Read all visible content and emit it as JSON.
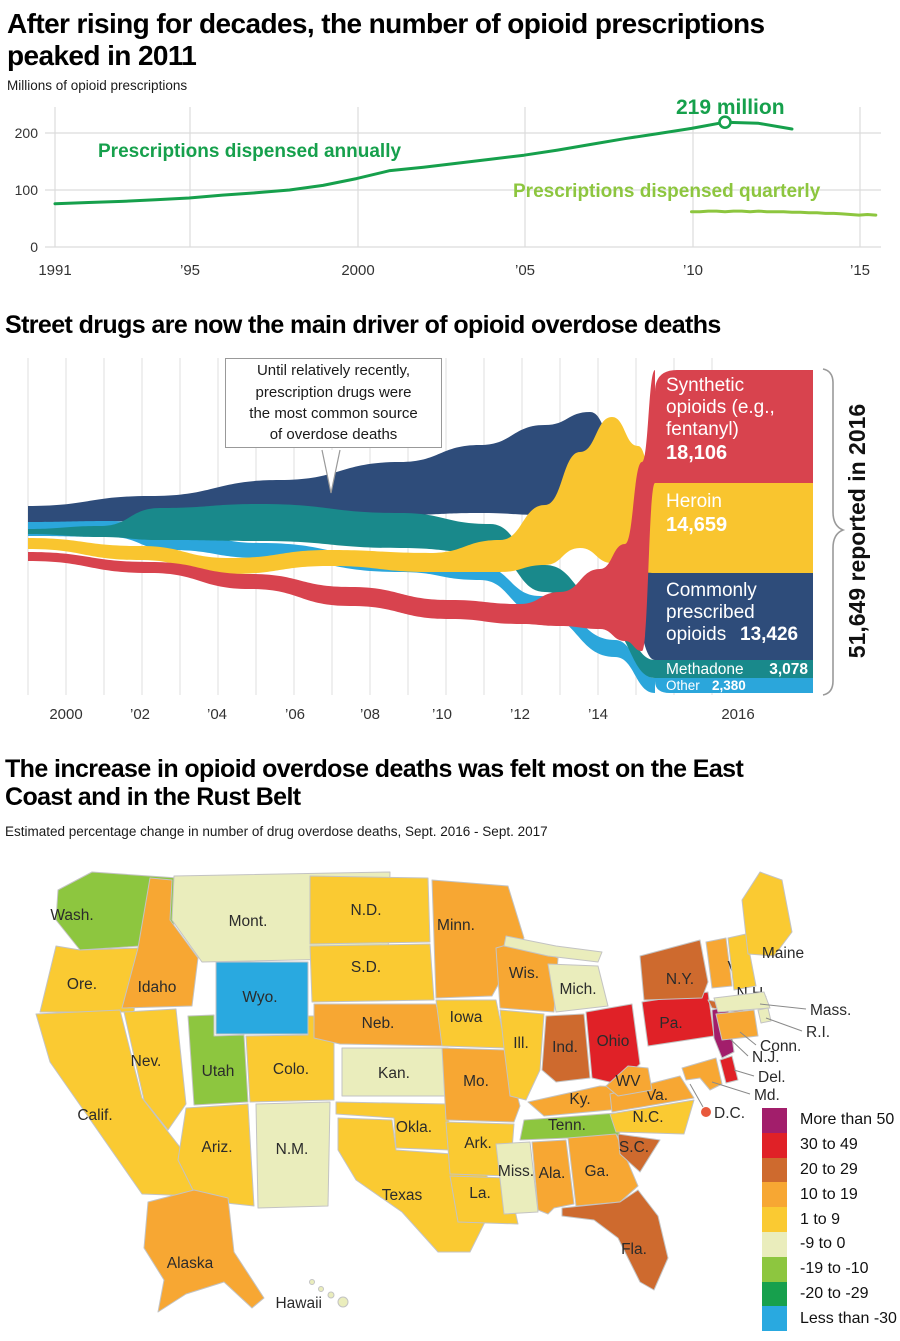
{
  "section1": {
    "title_lines": [
      "After rising for decades, the number of opioid prescriptions",
      "peaked in 2011"
    ],
    "subtitle": "Millions of opioid prescriptions",
    "y_ticks": [
      "200",
      "100",
      "0"
    ],
    "x_ticks": [
      "1991",
      "’95",
      "2000",
      "’05",
      "’10",
      "’15"
    ],
    "colors": {
      "annual": "#16A04C",
      "quarterly": "#8DC63F",
      "grid": "#DCDCDC"
    }
  },
  "section2": {
    "title": "Street drugs are now the main driver of opioid overdose deaths",
    "callout_lines": [
      "Until relatively recently,",
      "prescription drugs were",
      "the most common source",
      "of overdose deaths"
    ],
    "x_ticks": [
      "2000",
      "’02",
      "’04",
      "’06",
      "’08",
      "’10",
      "’12",
      "’14",
      "2016"
    ],
    "total_label": "51,649 reported in 2016",
    "labels": {
      "synthetic": {
        "lines": [
          "Synthetic",
          "opioids (e.g.,",
          "fentanyl)"
        ],
        "value": "18,106"
      },
      "heroin": {
        "lines": [
          "Heroin"
        ],
        "value": "14,659"
      },
      "prescribed": {
        "lines": [
          "Commonly",
          "prescribed",
          "opioids"
        ],
        "value": "13,426"
      },
      "methadone": {
        "name": "Methadone",
        "value": "3,078"
      },
      "other": {
        "name": "Other",
        "value": "2,380"
      }
    },
    "colors": {
      "synthetic": "#D8434E",
      "heroin": "#F9C52F",
      "prescribed": "#2E4C7A",
      "methadone": "#19898B",
      "other": "#2BA6DB",
      "grid": "#E8E8E8"
    }
  },
  "section3": {
    "title_lines": [
      "The increase in opioid overdose deaths was felt most on the East",
      "Coast and in the Rust Belt"
    ],
    "subtitle": "Estimated percentage change in number of drug overdose deaths, Sept. 2016 - Sept. 2017",
    "legend": [
      {
        "label": "More than 50",
        "color": "#A21E6B"
      },
      {
        "label": "30 to 49",
        "color": "#E02127"
      },
      {
        "label": "20 to 29",
        "color": "#CE6A2E"
      },
      {
        "label": "10 to 19",
        "color": "#F7A733"
      },
      {
        "label": "1 to 9",
        "color": "#FACA32"
      },
      {
        "label": "-9 to 0",
        "color": "#EAEDBC"
      },
      {
        "label": "-19 to -10",
        "color": "#8DC63F"
      },
      {
        "label": "-20 to -29",
        "color": "#17A04D"
      },
      {
        "label": "Less than -30",
        "color": "#29A9E0"
      }
    ]
  },
  "chart_data": [
    {
      "type": "line",
      "title": "After rising for decades, the number of opioid prescriptions peaked in 2011",
      "ylabel": "Millions of opioid prescriptions",
      "ylim": [
        0,
        250
      ],
      "xlim": [
        1991,
        2015.6
      ],
      "grid": true,
      "series": [
        {
          "name": "Prescriptions dispensed annually",
          "x_start": 1991,
          "x_step": 1,
          "values": [
            76,
            78,
            80,
            83,
            86,
            91,
            95,
            100,
            108,
            120,
            134,
            140,
            147,
            154,
            161,
            170,
            180,
            190,
            199,
            208,
            219,
            217,
            207
          ]
        },
        {
          "name": "Prescriptions dispensed quarterly",
          "x_start": 2010,
          "x_step": 0.25,
          "values": [
            62,
            62,
            63,
            63,
            62,
            63,
            63,
            62,
            63,
            62,
            62,
            62,
            61,
            61,
            60,
            60,
            59,
            59,
            58,
            57,
            56,
            57,
            56
          ]
        }
      ],
      "annotation": {
        "x": 2011,
        "y": 219,
        "label": "219 million"
      }
    },
    {
      "type": "area",
      "title": "Street drugs are now the main driver of opioid overdose deaths",
      "x": [
        1999,
        2000,
        2001,
        2002,
        2003,
        2004,
        2005,
        2006,
        2007,
        2008,
        2009,
        2010,
        2011,
        2012,
        2013,
        2014,
        2015,
        2016
      ],
      "series": [
        {
          "name": "Synthetic opioids (e.g., fentanyl)",
          "value_2016": 18106,
          "values": [
            730,
            782,
            957,
            1295,
            1400,
            1664,
            1742,
            2707,
            2213,
            2306,
            2946,
            3007,
            2666,
            2628,
            3105,
            5544,
            9580,
            18106
          ]
        },
        {
          "name": "Heroin",
          "value_2016": 14659,
          "values": [
            1960,
            1842,
            1779,
            2089,
            2080,
            1878,
            2009,
            2088,
            2399,
            3041,
            3278,
            3036,
            4397,
            5925,
            8257,
            10574,
            12989,
            14659
          ]
        },
        {
          "name": "Commonly prescribed opioids",
          "value_2016": 13426,
          "values": [
            2749,
            2917,
            3479,
            4416,
            4867,
            5231,
            5774,
            7017,
            8158,
            9119,
            9735,
            10943,
            11693,
            11140,
            11346,
            12159,
            12727,
            13426
          ]
        },
        {
          "name": "Methadone",
          "value_2016": 3078,
          "values": [
            784,
            986,
            1456,
            2358,
            2972,
            3845,
            4460,
            5406,
            5518,
            4924,
            4696,
            4577,
            4418,
            3932,
            3591,
            3400,
            3301,
            3078
          ]
        },
        {
          "name": "Other",
          "value_2016": 2380,
          "values": [
            900,
            950,
            1000,
            1100,
            1200,
            1300,
            1400,
            1500,
            1600,
            1700,
            1800,
            1900,
            2000,
            2100,
            2200,
            2250,
            2300,
            2380
          ]
        }
      ],
      "total_annotation": "51,649 reported in 2016",
      "note": "Until relatively recently, prescription drugs were the most common source of overdose deaths"
    },
    {
      "type": "choropleth",
      "title": "The increase in opioid overdose deaths was felt most on the East Coast and in the Rust Belt",
      "subtitle": "Estimated percentage change in number of drug overdose deaths, Sept. 2016 - Sept. 2017",
      "legend_bins": [
        "More than 50",
        "30 to 49",
        "20 to 29",
        "10 to 19",
        "1 to 9",
        "-9 to 0",
        "-19 to -10",
        "-20 to -29",
        "Less than -30"
      ],
      "states": [
        {
          "id": "wash",
          "label": "Wash.",
          "category": "-19 to -10"
        },
        {
          "id": "ore",
          "label": "Ore.",
          "category": "1 to 9"
        },
        {
          "id": "calif",
          "label": "Calif.",
          "category": "1 to 9"
        },
        {
          "id": "nev",
          "label": "Nev.",
          "category": "1 to 9"
        },
        {
          "id": "idaho",
          "label": "Idaho",
          "category": "10 to 19"
        },
        {
          "id": "mont",
          "label": "Mont.",
          "category": "-9 to 0"
        },
        {
          "id": "wyo",
          "label": "Wyo.",
          "category": "Less than -30"
        },
        {
          "id": "utah",
          "label": "Utah",
          "category": "-19 to -10"
        },
        {
          "id": "colo",
          "label": "Colo.",
          "category": "1 to 9"
        },
        {
          "id": "ariz",
          "label": "Ariz.",
          "category": "1 to 9"
        },
        {
          "id": "nm",
          "label": "N.M.",
          "category": "-9 to 0"
        },
        {
          "id": "nd",
          "label": "N.D.",
          "category": "1 to 9"
        },
        {
          "id": "sd",
          "label": "S.D.",
          "category": "1 to 9"
        },
        {
          "id": "neb",
          "label": "Neb.",
          "category": "10 to 19"
        },
        {
          "id": "kan",
          "label": "Kan.",
          "category": "-9 to 0"
        },
        {
          "id": "okla",
          "label": "Okla.",
          "category": "1 to 9"
        },
        {
          "id": "texas",
          "label": "Texas",
          "category": "1 to 9"
        },
        {
          "id": "minn",
          "label": "Minn.",
          "category": "10 to 19"
        },
        {
          "id": "iowa",
          "label": "Iowa",
          "category": "1 to 9"
        },
        {
          "id": "mo",
          "label": "Mo.",
          "category": "10 to 19"
        },
        {
          "id": "ark",
          "label": "Ark.",
          "category": "1 to 9"
        },
        {
          "id": "la",
          "label": "La.",
          "category": "1 to 9"
        },
        {
          "id": "wis",
          "label": "Wis.",
          "category": "10 to 19"
        },
        {
          "id": "ill",
          "label": "Ill.",
          "category": "1 to 9"
        },
        {
          "id": "mich",
          "label": "Mich.",
          "category": "-9 to 0"
        },
        {
          "id": "ind",
          "label": "Ind.",
          "category": "20 to 29"
        },
        {
          "id": "ohio",
          "label": "Ohio",
          "category": "30 to 49"
        },
        {
          "id": "ky",
          "label": "Ky.",
          "category": "10 to 19"
        },
        {
          "id": "tenn",
          "label": "Tenn.",
          "category": "-19 to -10"
        },
        {
          "id": "miss",
          "label": "Miss.",
          "category": "-9 to 0"
        },
        {
          "id": "ala",
          "label": "Ala.",
          "category": "10 to 19"
        },
        {
          "id": "ga",
          "label": "Ga.",
          "category": "10 to 19"
        },
        {
          "id": "fla",
          "label": "Fla.",
          "category": "20 to 29"
        },
        {
          "id": "sc",
          "label": "S.C.",
          "category": "20 to 29"
        },
        {
          "id": "nc",
          "label": "N.C.",
          "category": "1 to 9"
        },
        {
          "id": "va",
          "label": "Va.",
          "category": "10 to 19"
        },
        {
          "id": "wv",
          "label": "WV",
          "category": "10 to 19"
        },
        {
          "id": "pa",
          "label": "Pa.",
          "category": "30 to 49"
        },
        {
          "id": "ny",
          "label": "N.Y.",
          "category": "20 to 29"
        },
        {
          "id": "nj",
          "label": "N.J.",
          "category": "More than 50"
        },
        {
          "id": "del",
          "label": "Del.",
          "category": "30 to 49"
        },
        {
          "id": "md",
          "label": "Md.",
          "category": "10 to 19"
        },
        {
          "id": "vt",
          "label": "Vt.",
          "category": "10 to 19"
        },
        {
          "id": "nh",
          "label": "N.H.",
          "category": "1 to 9"
        },
        {
          "id": "maine",
          "label": "Maine",
          "category": "1 to 9"
        },
        {
          "id": "mass",
          "label": "Mass.",
          "category": "-9 to 0"
        },
        {
          "id": "ri",
          "label": "R.I.",
          "category": "-9 to 0"
        },
        {
          "id": "conn",
          "label": "Conn.",
          "category": "10 to 19"
        },
        {
          "id": "dc",
          "label": "D.C.",
          "category": "30 to 49",
          "color_override": "#E8593C"
        },
        {
          "id": "alaska",
          "label": "Alaska",
          "category": "10 to 19"
        },
        {
          "id": "hawaii",
          "label": "Hawaii",
          "category": "-9 to 0"
        }
      ]
    }
  ]
}
